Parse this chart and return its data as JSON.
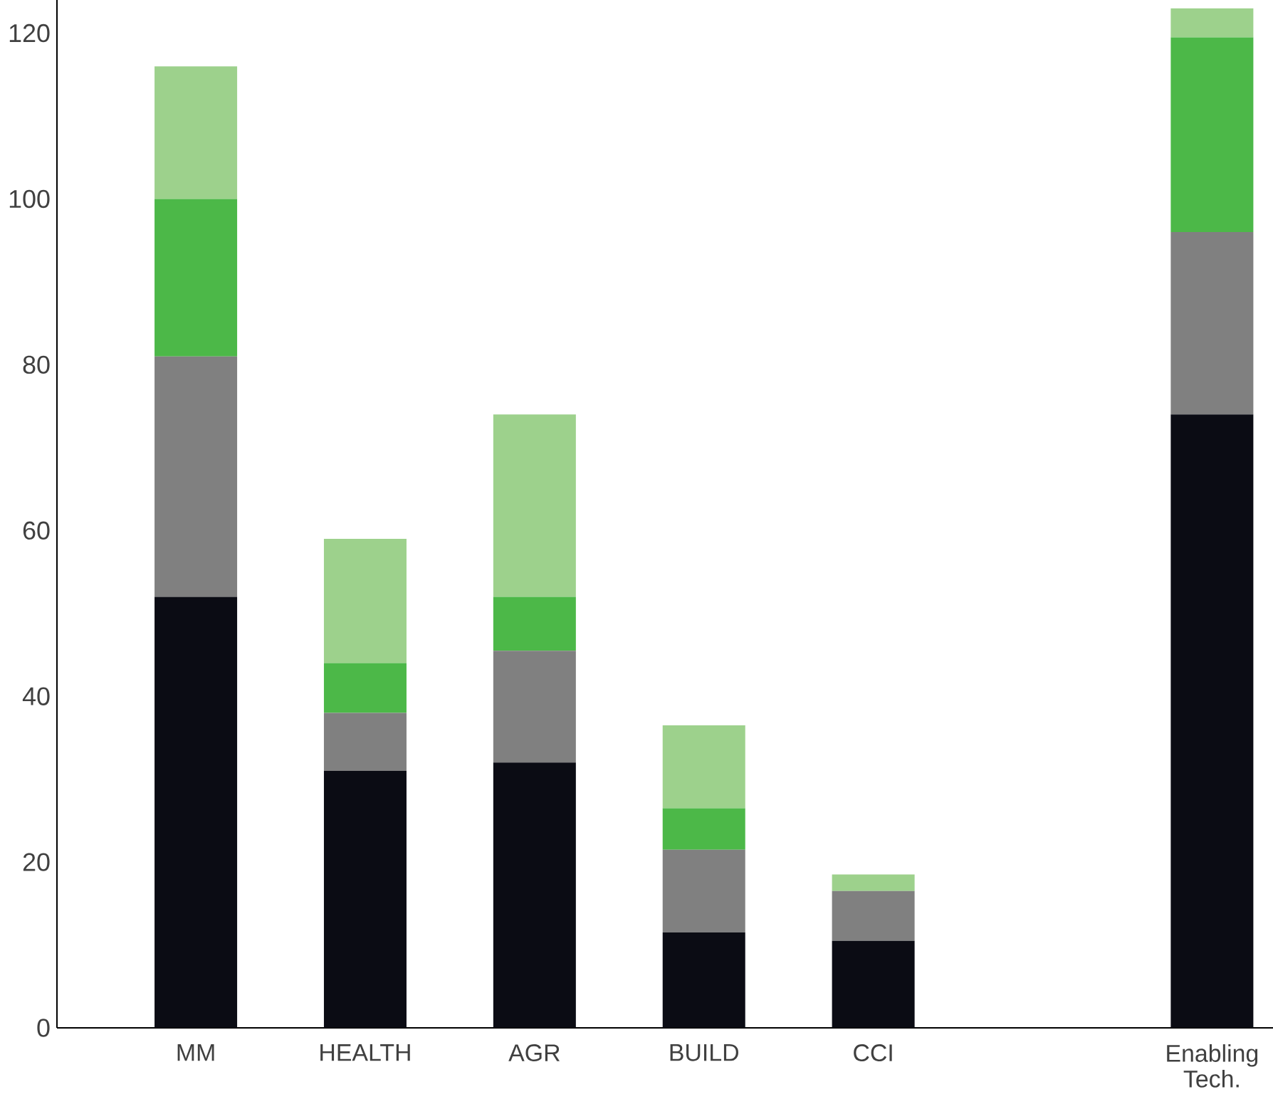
{
  "chart_data": {
    "type": "bar",
    "stacked": true,
    "categories": [
      "MM",
      "HEALTH",
      "AGR",
      "BUILD",
      "CCI",
      null,
      "Enabling Tech."
    ],
    "series": [
      {
        "color": "#0b0c14",
        "values": [
          52,
          31,
          32,
          11.5,
          10.5,
          null,
          74
        ]
      },
      {
        "color": "#808080",
        "values": [
          29,
          7,
          13.5,
          10,
          6,
          null,
          22
        ]
      },
      {
        "color": "#4cb848",
        "values": [
          19,
          6,
          6.5,
          5,
          0,
          null,
          23.5
        ]
      },
      {
        "color": "#9dd18c",
        "values": [
          16,
          15,
          22,
          10,
          2,
          null,
          3.5
        ]
      }
    ],
    "ylim": [
      0,
      124
    ],
    "yticks": [
      0,
      20,
      40,
      60,
      80,
      100,
      120
    ],
    "grid": false
  }
}
